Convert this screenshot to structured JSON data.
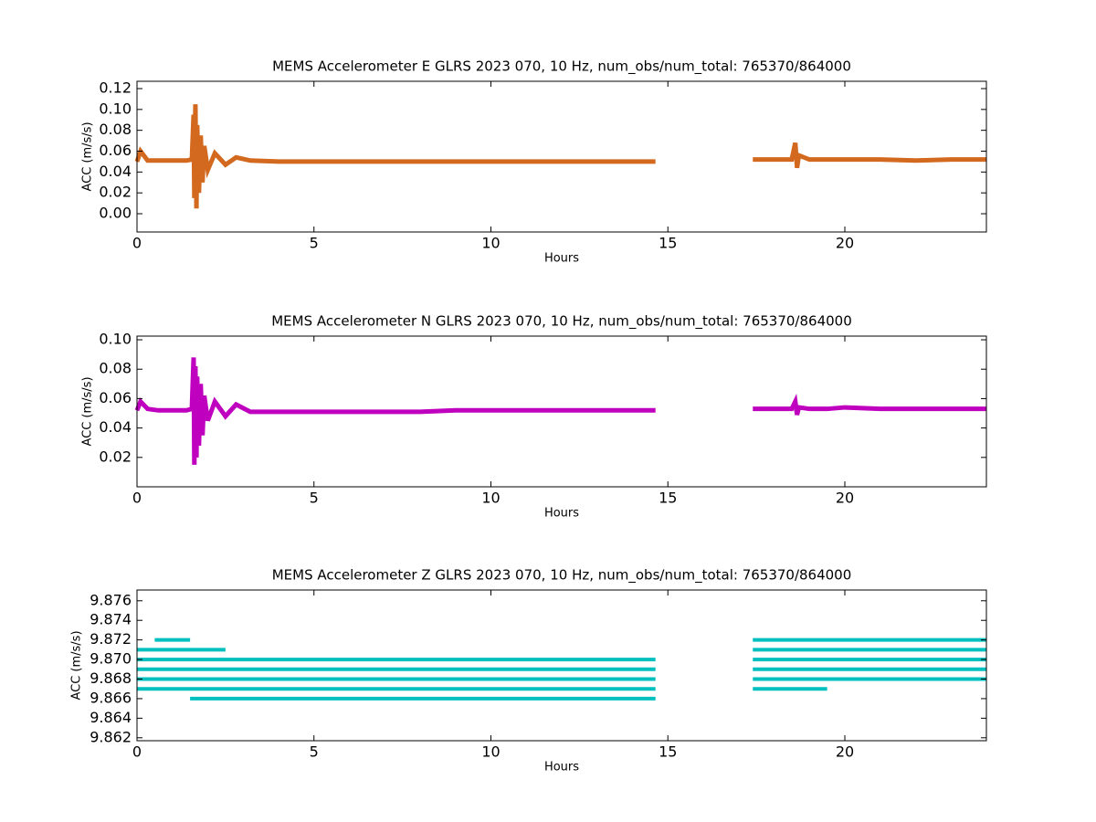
{
  "chart_data": [
    {
      "type": "line",
      "title": "MEMS Accelerometer E GLRS 2023 070, 10 Hz, num_obs/num_total: 765370/864000",
      "xlabel": "Hours",
      "ylabel": "ACC (m/s/s)",
      "xlim": [
        0,
        24
      ],
      "xticks": [
        0,
        5,
        10,
        15,
        20
      ],
      "ylim": [
        -0.0175,
        0.127
      ],
      "yticks": [
        {
          "value": 0,
          "label": "0.00"
        },
        {
          "value": 0.02,
          "label": "0.02"
        },
        {
          "value": 0.04,
          "label": "0.04"
        },
        {
          "value": 0.06,
          "label": "0.06"
        },
        {
          "value": 0.08,
          "label": "0.08"
        },
        {
          "value": 0.1,
          "label": "0.10"
        },
        {
          "value": 0.12,
          "label": "0.12"
        }
      ],
      "series": [
        {
          "color": "#d2691e",
          "x": [
            0,
            0.1,
            0.3,
            0.6,
            1.0,
            1.4,
            1.55,
            1.6,
            1.62,
            1.65,
            1.68,
            1.7,
            1.75,
            1.8,
            1.85,
            1.9,
            2.0,
            2.2,
            2.5,
            2.8,
            3.2,
            4,
            5,
            6,
            7,
            8,
            9,
            10,
            11,
            12,
            13,
            14,
            14.65,
            16,
            17.4,
            18,
            18.5,
            18.6,
            18.65,
            18.7,
            19,
            19.5,
            20,
            21,
            22,
            23,
            24
          ],
          "values": [
            0.05,
            0.06,
            0.051,
            0.051,
            0.051,
            0.051,
            0.052,
            0.095,
            0.015,
            0.105,
            0.005,
            0.085,
            0.02,
            0.075,
            0.03,
            0.065,
            0.042,
            0.058,
            0.047,
            0.054,
            0.051,
            0.05,
            0.05,
            0.05,
            0.05,
            0.05,
            0.05,
            0.05,
            0.05,
            0.05,
            0.05,
            0.05,
            0.05,
            null,
            0.052,
            0.052,
            0.052,
            0.068,
            0.044,
            0.056,
            0.052,
            0.052,
            0.052,
            0.052,
            0.051,
            0.052,
            0.052
          ]
        }
      ]
    },
    {
      "type": "line",
      "title": "MEMS Accelerometer N GLRS 2023 070, 10 Hz, num_obs/num_total: 765370/864000",
      "xlabel": "Hours",
      "ylabel": "ACC (m/s/s)",
      "xlim": [
        0,
        24
      ],
      "xticks": [
        0,
        5,
        10,
        15,
        20
      ],
      "ylim": [
        0,
        0.1025
      ],
      "yticks": [
        {
          "value": 0.02,
          "label": "0.02"
        },
        {
          "value": 0.04,
          "label": "0.04"
        },
        {
          "value": 0.06,
          "label": "0.06"
        },
        {
          "value": 0.08,
          "label": "0.08"
        },
        {
          "value": 0.1,
          "label": "0.10"
        }
      ],
      "series": [
        {
          "color": "#bf00bf",
          "x": [
            0,
            0.1,
            0.3,
            0.6,
            1.0,
            1.4,
            1.55,
            1.6,
            1.62,
            1.65,
            1.68,
            1.7,
            1.75,
            1.8,
            1.85,
            1.9,
            2.0,
            2.2,
            2.5,
            2.8,
            3.2,
            4,
            5,
            6,
            7,
            8,
            9,
            10,
            11,
            12,
            13,
            14,
            14.65,
            16,
            17.4,
            18,
            18.5,
            18.6,
            18.65,
            18.7,
            19,
            19.5,
            20,
            21,
            22,
            23,
            24
          ],
          "values": [
            0.052,
            0.058,
            0.053,
            0.052,
            0.052,
            0.052,
            0.053,
            0.088,
            0.015,
            0.082,
            0.02,
            0.075,
            0.028,
            0.07,
            0.035,
            0.062,
            0.045,
            0.058,
            0.048,
            0.056,
            0.051,
            0.051,
            0.051,
            0.051,
            0.051,
            0.051,
            0.052,
            0.052,
            0.052,
            0.052,
            0.052,
            0.052,
            0.052,
            null,
            0.053,
            0.053,
            0.053,
            0.058,
            0.049,
            0.054,
            0.053,
            0.053,
            0.054,
            0.053,
            0.053,
            0.053,
            0.053
          ]
        }
      ]
    },
    {
      "type": "line",
      "title": "MEMS Accelerometer Z GLRS 2023 070, 10 Hz, num_obs/num_total: 765370/864000",
      "xlabel": "Hours",
      "ylabel": "ACC (m/s/s)",
      "xlim": [
        0,
        24
      ],
      "xticks": [
        0,
        5,
        10,
        15,
        20
      ],
      "ylim": [
        9.8617,
        9.8771
      ],
      "yticks": [
        9.862,
        9.864,
        9.866,
        9.868,
        {
          "value": 9.87,
          "label": "9.870"
        },
        9.872,
        9.874,
        9.876
      ],
      "series": [
        {
          "color": "#00bfbf",
          "x": [
            1.5,
            14.65
          ],
          "values": [
            9.866,
            9.866
          ]
        },
        {
          "color": "#00bfbf",
          "x": [
            0,
            14.65,
            16,
            17.4,
            19.5
          ],
          "values": [
            9.867,
            9.867,
            null,
            9.867,
            9.867
          ]
        },
        {
          "color": "#00bfbf",
          "x": [
            0,
            14.65,
            16,
            17.4,
            24
          ],
          "values": [
            9.868,
            9.868,
            null,
            9.868,
            9.868
          ]
        },
        {
          "color": "#00bfbf",
          "x": [
            0,
            14.65,
            16,
            17.4,
            24
          ],
          "values": [
            9.869,
            9.869,
            null,
            9.869,
            9.869
          ]
        },
        {
          "color": "#00bfbf",
          "x": [
            0,
            14.65,
            16,
            17.4,
            24
          ],
          "values": [
            9.87,
            9.87,
            null,
            9.87,
            9.87
          ]
        },
        {
          "color": "#00bfbf",
          "x": [
            0,
            2.5,
            16,
            17.4,
            24
          ],
          "values": [
            9.871,
            9.871,
            null,
            9.871,
            9.871
          ]
        },
        {
          "color": "#00bfbf",
          "x": [
            0.5,
            1.5,
            16,
            17.4,
            24
          ],
          "values": [
            9.872,
            9.872,
            null,
            9.872,
            9.872
          ]
        }
      ]
    }
  ]
}
